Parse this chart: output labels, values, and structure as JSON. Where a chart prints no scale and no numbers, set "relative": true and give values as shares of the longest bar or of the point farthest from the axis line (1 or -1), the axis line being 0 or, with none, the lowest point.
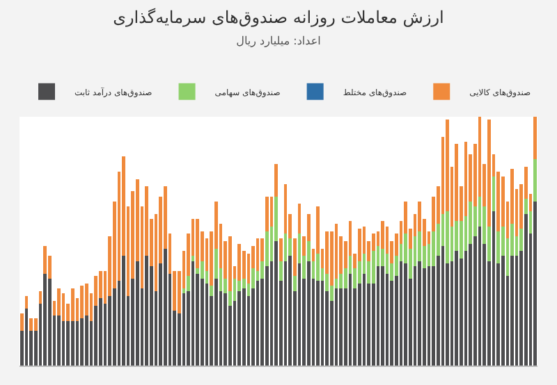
{
  "chart_data": {
    "type": "bar",
    "title": "ارزش معاملات روزانه صندوق‌های سرمایه‌گذاری",
    "subtitle": "اعداد: میلیارد ریال",
    "relative": true,
    "stacked": true,
    "legend": "top",
    "categories": [
      null,
      null,
      null,
      null,
      null,
      null,
      null,
      null,
      null,
      null,
      null,
      null,
      null,
      null,
      null,
      null,
      null,
      null,
      null,
      null,
      null,
      null,
      null,
      null,
      null,
      null,
      null,
      null,
      null,
      null,
      null,
      null,
      null,
      null,
      null,
      null,
      null,
      null,
      null,
      null,
      null,
      null,
      null,
      null,
      null,
      null,
      null,
      null,
      null,
      null,
      null,
      null,
      null,
      null,
      null,
      null,
      null,
      null,
      null,
      null,
      null,
      null,
      null,
      null,
      null,
      null,
      null,
      null,
      null,
      null,
      null,
      null,
      null,
      null,
      null,
      null,
      null,
      null,
      null,
      null,
      null,
      null,
      null,
      null,
      null,
      null,
      null,
      null,
      null,
      null,
      null,
      null,
      null,
      null,
      null,
      null,
      null,
      null,
      null,
      null,
      null,
      null,
      null,
      null,
      null,
      null,
      null,
      null,
      null,
      null,
      null,
      null
    ],
    "series": [
      {
        "name": "صندوق‌های درآمد ثابت",
        "color": "#4d4d4f",
        "values": [
          0.14,
          0.23,
          0.14,
          0.14,
          0.25,
          0.37,
          0.35,
          0.2,
          0.2,
          0.18,
          0.18,
          0.18,
          0.18,
          0.19,
          0.2,
          0.18,
          0.24,
          0.27,
          0.25,
          0.28,
          0.31,
          0.34,
          0.44,
          0.28,
          0.35,
          0.42,
          0.31,
          0.44,
          0.4,
          0.3,
          0.41,
          0.47,
          0.37,
          0.22,
          0.21,
          0.29,
          0.3,
          0.42,
          0.37,
          0.35,
          0.33,
          0.28,
          0.35,
          0.3,
          0.29,
          0.24,
          0.26,
          0.3,
          0.31,
          0.28,
          0.31,
          0.34,
          0.35,
          0.4,
          0.42,
          0.5,
          0.34,
          0.42,
          0.44,
          0.3,
          0.41,
          0.35,
          0.42,
          0.35,
          0.34,
          0.34,
          0.3,
          0.26,
          0.31,
          0.31,
          0.31,
          0.37,
          0.31,
          0.33,
          0.37,
          0.33,
          0.33,
          0.4,
          0.4,
          0.37,
          0.34,
          0.36,
          0.42,
          0.41,
          0.35,
          0.4,
          0.42,
          0.39,
          0.4,
          0.4,
          0.44,
          0.48,
          0.41,
          0.42,
          0.46,
          0.43,
          0.46,
          0.49,
          0.52,
          0.56,
          0.49,
          0.42,
          0.62,
          0.41,
          0.44,
          0.36,
          0.44,
          0.44,
          0.46,
          0.61,
          0.53,
          0.66
        ]
      },
      {
        "name": "صندوق‌های سهامی",
        "color": "#8fd16b",
        "values": [
          0,
          0,
          0,
          0,
          0,
          0,
          0,
          0,
          0,
          0,
          0,
          0,
          0,
          0,
          0,
          0,
          0,
          0,
          0,
          0,
          0,
          0,
          0,
          0,
          0,
          0,
          0,
          0,
          0,
          0,
          0,
          0,
          0,
          0,
          0,
          0.02,
          0.06,
          0.02,
          0.02,
          0.07,
          0.05,
          0.04,
          0.12,
          0.09,
          0.06,
          0.06,
          0.09,
          0.04,
          0.04,
          0.05,
          0.08,
          0.04,
          0.07,
          0.14,
          0.14,
          0.18,
          0.08,
          0.11,
          0.07,
          0.06,
          0.12,
          0.09,
          0.08,
          0.07,
          0.11,
          0.05,
          0.07,
          0.06,
          0.04,
          0.06,
          0.08,
          0.07,
          0.08,
          0.09,
          0.08,
          0.09,
          0.13,
          0.08,
          0.07,
          0.08,
          0.07,
          0.08,
          0.07,
          0.12,
          0.12,
          0.12,
          0.12,
          0.09,
          0.09,
          0.14,
          0.13,
          0.13,
          0.21,
          0.14,
          0.12,
          0.15,
          0.14,
          0.17,
          0.12,
          0.12,
          0.15,
          0.14,
          0.14,
          0.13,
          0.12,
          0.15,
          0.13,
          0.08,
          0.09,
          0.06,
          0.09,
          0.17
        ]
      },
      {
        "name": "صندوق‌های مختلط",
        "color": "#2e6fa8",
        "values": [
          0,
          0,
          0,
          0,
          0,
          0,
          0,
          0,
          0,
          0,
          0,
          0,
          0,
          0,
          0,
          0,
          0,
          0,
          0,
          0,
          0,
          0,
          0,
          0,
          0,
          0,
          0,
          0,
          0,
          0,
          0,
          0,
          0,
          0,
          0,
          0,
          0,
          0,
          0,
          0,
          0,
          0,
          0,
          0,
          0,
          0,
          0,
          0,
          0,
          0,
          0,
          0,
          0,
          0,
          0,
          0,
          0,
          0,
          0,
          0,
          0,
          0,
          0,
          0,
          0,
          0,
          0,
          0,
          0,
          0,
          0,
          0,
          0,
          0,
          0,
          0,
          0,
          0,
          0,
          0,
          0,
          0,
          0,
          0,
          0,
          0,
          0,
          0,
          0,
          0,
          0,
          0,
          0,
          0,
          0,
          0,
          0,
          0,
          0,
          0,
          0,
          0,
          0,
          0,
          0,
          0,
          0,
          0,
          0,
          0,
          0,
          0
        ]
      },
      {
        "name": "صندوق‌های کالایی",
        "color": "#f08a3c",
        "values": [
          0.07,
          0.05,
          0.05,
          0.05,
          0.05,
          0.11,
          0.09,
          0.06,
          0.11,
          0.11,
          0.07,
          0.13,
          0.09,
          0.13,
          0.13,
          0.11,
          0.12,
          0.11,
          0.13,
          0.24,
          0.35,
          0.44,
          0.4,
          0.36,
          0.35,
          0.33,
          0.33,
          0.28,
          0.19,
          0.31,
          0.27,
          0.25,
          0.16,
          0.16,
          0.17,
          0.15,
          0.17,
          0.15,
          0.2,
          0.12,
          0.13,
          0.22,
          0.19,
          0.18,
          0.15,
          0.22,
          0.05,
          0.15,
          0.11,
          0.12,
          0.09,
          0.13,
          0.09,
          0.14,
          0.12,
          0.13,
          0.09,
          0.2,
          0.1,
          0.15,
          0.12,
          0.08,
          0.11,
          0.05,
          0.19,
          0.08,
          0.17,
          0.22,
          0.22,
          0.15,
          0.11,
          0.14,
          0.06,
          0.13,
          0.11,
          0.08,
          0.07,
          0.06,
          0.11,
          0.11,
          0.09,
          0.09,
          0.09,
          0.13,
          0.08,
          0.09,
          0.12,
          0.11,
          0.05,
          0.14,
          0.15,
          0.31,
          0.37,
          0.24,
          0.31,
          0.14,
          0.3,
          0.19,
          0.25,
          0.32,
          0.17,
          0.43,
          0.09,
          0.24,
          0.2,
          0.15,
          0.22,
          0.19,
          0.18,
          0.13,
          0.07,
          0.17
        ]
      }
    ]
  }
}
